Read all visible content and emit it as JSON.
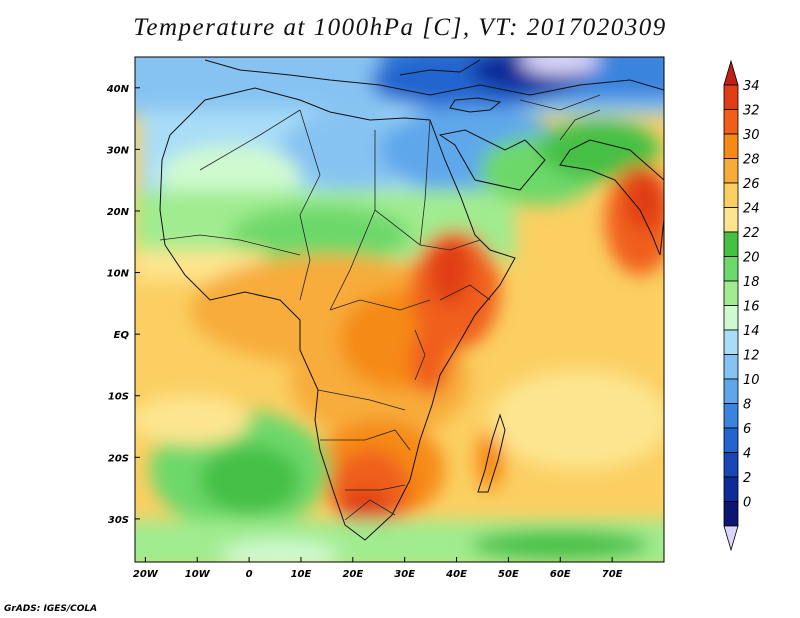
{
  "title": "Temperature at 1000hPa [C], VT: 2017020309",
  "credit": "GrADS: IGES/COLA",
  "lon_labels": [
    "20W",
    "10W",
    "0",
    "10E",
    "20E",
    "30E",
    "40E",
    "50E",
    "60E",
    "70E"
  ],
  "lon_values": [
    -20,
    -10,
    0,
    10,
    20,
    30,
    40,
    50,
    60,
    70
  ],
  "lat_labels": [
    "40N",
    "30N",
    "20N",
    "10N",
    "EQ",
    "10S",
    "20S",
    "30S"
  ],
  "lat_values": [
    40,
    30,
    20,
    10,
    0,
    -10,
    -20,
    -30
  ],
  "extent": {
    "lon": [
      -22,
      80
    ],
    "lat": [
      -37,
      45
    ]
  },
  "colorbar": {
    "labels": [
      "34",
      "32",
      "30",
      "28",
      "26",
      "24",
      "22",
      "20",
      "18",
      "16",
      "14",
      "12",
      "10",
      "8",
      "6",
      "4",
      "2",
      "0"
    ],
    "colors": [
      "#e03c15",
      "#f05e1a",
      "#f68a17",
      "#f7ac3a",
      "#fbcf62",
      "#fde58f",
      "#45c044",
      "#6dd86b",
      "#a0ec8f",
      "#cffad0",
      "#a9ddf7",
      "#86c3f2",
      "#5ea7eb",
      "#3a84de",
      "#2265cf",
      "#1747b4",
      "#0e2c98",
      "#0a1671"
    ],
    "over_color": "#c11f14",
    "under_color": "#d9d6fa"
  }
}
